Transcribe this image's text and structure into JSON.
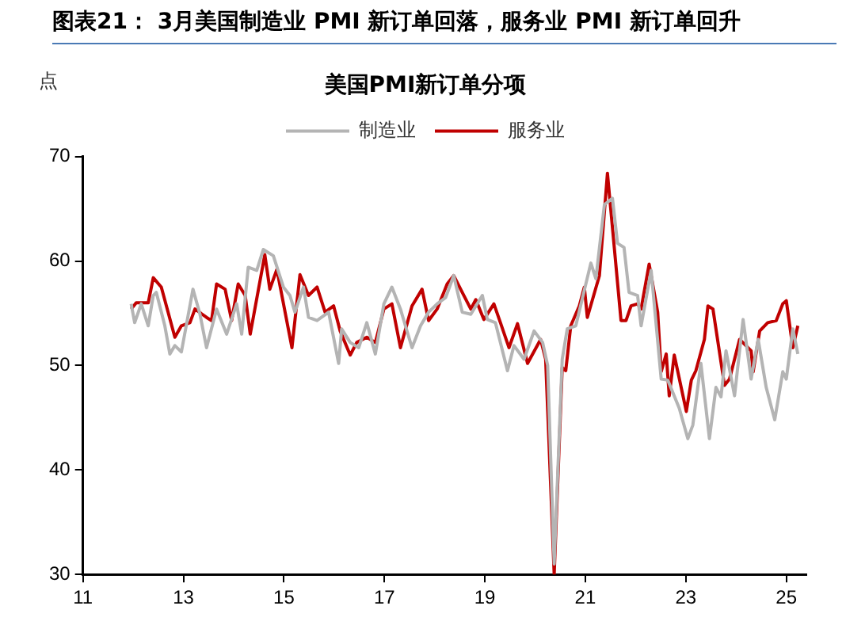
{
  "chart_data": {
    "type": "line",
    "title": "图表21： 3月美国制造业 PMI 新订单回落，服务业 PMI 新订单回升",
    "subtitle": "美国PMI新订单分项",
    "ylabel": "点",
    "legend": "top",
    "marker": "none",
    "line_style": "solid",
    "xlim": [
      11,
      25.4
    ],
    "xticks": [
      11,
      13,
      15,
      17,
      19,
      21,
      23,
      25
    ],
    "ylim": [
      30,
      70
    ],
    "yticks": [
      30,
      40,
      50,
      60,
      70
    ],
    "series": [
      {
        "name": "制造业",
        "color": "#b4b4b4",
        "x": [
          11.96,
          12.03,
          12.16,
          12.3,
          12.4,
          12.46,
          12.63,
          12.73,
          12.83,
          12.96,
          13.19,
          13.33,
          13.46,
          13.66,
          13.86,
          14.06,
          14.16,
          14.29,
          14.46,
          14.59,
          14.79,
          14.99,
          15.12,
          15.22,
          15.39,
          15.49,
          15.66,
          15.89,
          16.09,
          16.15,
          16.32,
          16.49,
          16.65,
          16.82,
          16.99,
          17.15,
          17.32,
          17.55,
          17.72,
          17.88,
          18.05,
          18.22,
          18.38,
          18.55,
          18.72,
          18.95,
          19.05,
          19.21,
          19.45,
          19.58,
          19.78,
          19.98,
          20.15,
          20.25,
          20.38,
          20.54,
          20.64,
          20.81,
          21.11,
          21.21,
          21.38,
          21.54,
          21.64,
          21.77,
          21.87,
          22.04,
          22.11,
          22.31,
          22.51,
          22.64,
          22.87,
          23.04,
          23.14,
          23.3,
          23.47,
          23.6,
          23.7,
          23.8,
          23.97,
          24.14,
          24.3,
          24.44,
          24.6,
          24.77,
          24.93,
          25.0,
          25.13,
          25.23
        ],
        "values": [
          55.9,
          54.1,
          55.9,
          53.8,
          56.7,
          57,
          53.8,
          51.1,
          51.9,
          51.3,
          57.3,
          54.9,
          51.7,
          55.4,
          53,
          55.9,
          53,
          59.4,
          59.1,
          61.1,
          60.5,
          57.5,
          56.7,
          55.1,
          57.5,
          54.6,
          54.3,
          55.1,
          50.2,
          53.5,
          52.2,
          51.7,
          54.1,
          51.1,
          55.9,
          57.5,
          55.4,
          51.7,
          53.8,
          55.1,
          55.9,
          56.5,
          58.6,
          55.1,
          54.9,
          56.7,
          54.4,
          54.1,
          49.5,
          51.9,
          50.6,
          53.3,
          52.2,
          50,
          31,
          50.6,
          53.5,
          53.8,
          59.8,
          58.3,
          65.4,
          66,
          61.7,
          61.3,
          57,
          56.7,
          53.8,
          59.1,
          48.7,
          48.6,
          45.9,
          43,
          44.3,
          50.2,
          43,
          47.9,
          47,
          51.4,
          47.1,
          54.4,
          48.7,
          52.5,
          47.9,
          44.8,
          49.4,
          48.7,
          53.5,
          51.1
        ]
      },
      {
        "name": "服务业",
        "color": "#c00000",
        "x": [
          11.96,
          12.06,
          12.3,
          12.4,
          12.56,
          12.83,
          12.96,
          13.13,
          13.23,
          13.46,
          13.56,
          13.66,
          13.83,
          13.96,
          14.09,
          14.23,
          14.33,
          14.62,
          14.72,
          14.86,
          15.16,
          15.32,
          15.49,
          15.66,
          15.82,
          15.99,
          16.12,
          16.32,
          16.45,
          16.65,
          16.82,
          16.99,
          17.15,
          17.32,
          17.55,
          17.75,
          17.88,
          18.05,
          18.25,
          18.38,
          18.55,
          18.72,
          18.82,
          18.98,
          19.18,
          19.31,
          19.48,
          19.65,
          19.85,
          20.11,
          20.21,
          20.38,
          20.54,
          20.61,
          20.71,
          20.88,
          20.98,
          21.04,
          21.28,
          21.44,
          21.71,
          21.81,
          21.91,
          22.04,
          22.11,
          22.27,
          22.44,
          22.51,
          22.61,
          22.67,
          22.77,
          23.01,
          23.11,
          23.2,
          23.37,
          23.44,
          23.54,
          23.77,
          23.87,
          24.07,
          24.3,
          24.34,
          24.47,
          24.63,
          24.8,
          24.93,
          25.0,
          25.13,
          25.23
        ],
        "values": [
          55.4,
          56,
          56,
          58.4,
          57.5,
          52.7,
          53.8,
          54.1,
          55.4,
          54.6,
          54.3,
          57.8,
          57.3,
          54.3,
          57.8,
          56.7,
          53,
          60.6,
          57.3,
          59.2,
          51.7,
          58.7,
          56.7,
          57.5,
          55.1,
          55.7,
          53.3,
          51,
          52.2,
          52.7,
          52.2,
          55.4,
          55.9,
          51.7,
          55.7,
          57.3,
          54.3,
          55.4,
          57.8,
          58.6,
          57,
          55.4,
          56.3,
          54.4,
          55.9,
          54.1,
          51.7,
          54,
          50.2,
          52.5,
          50.6,
          30,
          49.8,
          49.5,
          53.8,
          55.7,
          57.5,
          54.6,
          58.6,
          68.4,
          54.3,
          54.3,
          55.7,
          55.9,
          55.4,
          59.7,
          55.1,
          49.4,
          51.1,
          47.1,
          51,
          45.6,
          48.6,
          49.5,
          52.5,
          55.7,
          55.4,
          48.1,
          48.7,
          52.5,
          51.4,
          49.4,
          53.3,
          54.1,
          54.3,
          55.9,
          56.2,
          51.7,
          53.8
        ]
      }
    ]
  }
}
